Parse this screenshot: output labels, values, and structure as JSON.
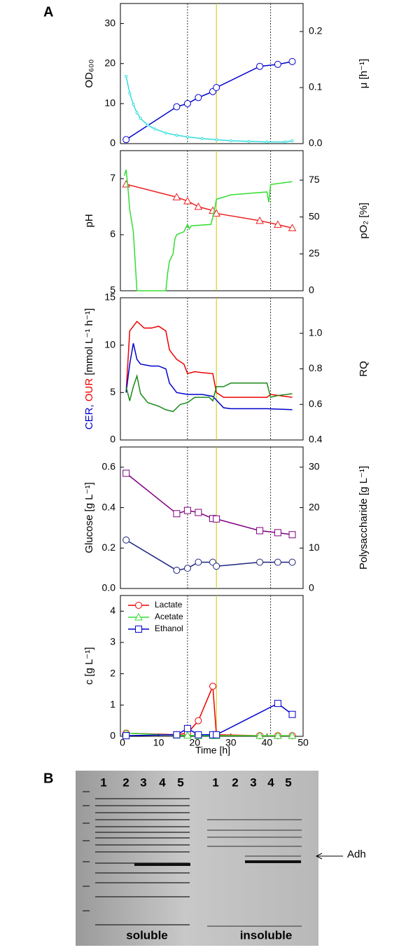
{
  "panel_labels": {
    "a": "A",
    "b": "B"
  },
  "gel": {
    "lanes_soluble": [
      "1",
      "2",
      "3",
      "4",
      "5"
    ],
    "lanes_insoluble": [
      "1",
      "2",
      "3",
      "4",
      "5"
    ],
    "soluble": "soluble",
    "insoluble": "insoluble",
    "arrow_label": "Adh"
  },
  "chart_data": [
    {
      "type": "line",
      "ylabel": [
        {
          "text": "OD₆₀₀",
          "color": "#000000"
        }
      ],
      "y2label": [
        {
          "text": "μ [h⁻¹]",
          "color": "#000000"
        }
      ],
      "xlim": [
        0,
        50
      ],
      "ylim": [
        0,
        35
      ],
      "yticks": [
        0,
        10,
        20,
        30
      ],
      "y2lim": [
        0,
        0.25
      ],
      "y2ticks": [
        {
          "value": 0,
          "label": "0.0"
        },
        0.1,
        0.2
      ],
      "vlines": [
        {
          "x": 18,
          "color": "#333333"
        },
        {
          "x": 26,
          "color": "#c8c800"
        },
        {
          "x": 41,
          "color": "#333333"
        }
      ],
      "series": [
        {
          "color": "#0000cc",
          "marker": "circle",
          "x": [
            1,
            15,
            18,
            21,
            25,
            26,
            38,
            43,
            47
          ],
          "values": [
            1,
            9.2,
            10,
            11.5,
            13,
            14,
            19.3,
            19.8,
            20.5
          ]
        },
        {
          "color": "#33dddd",
          "marker": "dot",
          "axis": "y2",
          "x": [
            1,
            2,
            3,
            4,
            5,
            7,
            9,
            12,
            15,
            18,
            22,
            26,
            30,
            35,
            40,
            45,
            47
          ],
          "values": [
            0.12,
            0.09,
            0.07,
            0.055,
            0.045,
            0.033,
            0.026,
            0.019,
            0.015,
            0.012,
            0.009,
            0.007,
            0.005,
            0.004,
            0.003,
            0.003,
            0.005
          ]
        }
      ]
    },
    {
      "type": "line",
      "ylabel": [
        {
          "text": "pH",
          "color": "#000000"
        }
      ],
      "y2label": [
        {
          "text": "pO₂ [%]",
          "color": "#000000"
        }
      ],
      "xlim": [
        0,
        50
      ],
      "ylim": [
        5,
        7.5
      ],
      "yticks": [
        5,
        6,
        7
      ],
      "y2lim": [
        0,
        95
      ],
      "y2ticks": [
        0,
        25,
        50,
        75
      ],
      "vlines": [
        {
          "x": 18,
          "color": "#333333"
        },
        {
          "x": 26,
          "color": "#c8c800"
        },
        {
          "x": 41,
          "color": "#333333"
        }
      ],
      "series": [
        {
          "color": "#ee2222",
          "marker": "triangle",
          "x": [
            1,
            15,
            18,
            21,
            25,
            26,
            38,
            43,
            47
          ],
          "values": [
            6.9,
            6.67,
            6.6,
            6.5,
            6.43,
            6.38,
            6.25,
            6.18,
            6.12
          ]
        },
        {
          "color": "#33dd33",
          "axis": "y2",
          "x": [
            0.5,
            1,
            1.5,
            2,
            3,
            3.5,
            4,
            12,
            12.5,
            13,
            14,
            14.5,
            15,
            17,
            18,
            18.5,
            19,
            24.5,
            25,
            25.5,
            26,
            30,
            35,
            40,
            40.5,
            41,
            47
          ],
          "values": [
            78,
            82,
            70,
            55,
            40,
            20,
            0,
            0,
            12,
            20,
            25,
            35,
            38,
            40,
            45,
            42,
            44,
            45,
            50,
            55,
            62,
            65,
            66,
            67,
            60,
            72,
            74
          ]
        }
      ]
    },
    {
      "type": "line",
      "ylabel": [
        {
          "text": "CER, ",
          "color": "#0000cc"
        },
        {
          "text": "OUR",
          "color": "#ee0000"
        },
        {
          "text": " [mmol L⁻¹ h⁻¹]",
          "color": "#000000"
        }
      ],
      "y2label": [
        {
          "text": "RQ",
          "color": "#000000"
        }
      ],
      "xlim": [
        0,
        50
      ],
      "ylim": [
        0,
        15
      ],
      "yticks": [
        0,
        5,
        10,
        15
      ],
      "y2lim": [
        0.4,
        1.2
      ],
      "y2ticks": [
        0.4,
        0.6,
        0.8,
        {
          "value": 1,
          "label": "1.0"
        }
      ],
      "vlines": [
        {
          "x": 18,
          "color": "#333333"
        },
        {
          "x": 26,
          "color": "#c8c800"
        },
        {
          "x": 41,
          "color": "#333333"
        }
      ],
      "series": [
        {
          "color": "#ee0000",
          "x": [
            1,
            2,
            3,
            4,
            6,
            8,
            10,
            12,
            13,
            15,
            17,
            18,
            20,
            22,
            25,
            26,
            28,
            30,
            35,
            40,
            41,
            47
          ],
          "values": [
            5,
            11.5,
            12,
            12.5,
            11.8,
            11.8,
            12,
            11.5,
            9.5,
            8.5,
            8,
            7,
            7.2,
            7.1,
            7,
            5,
            4.5,
            4.5,
            4.5,
            4.5,
            4.8,
            4.5
          ]
        },
        {
          "color": "#0000cc",
          "x": [
            1,
            2,
            3,
            4,
            5,
            8,
            10,
            12,
            13,
            15,
            18,
            22,
            25,
            26,
            28,
            30,
            40,
            47
          ],
          "values": [
            5,
            8,
            10.2,
            8.5,
            8,
            7.8,
            7.8,
            7.5,
            6,
            5,
            4.8,
            4.8,
            4.6,
            4.2,
            3.4,
            3.3,
            3.3,
            3.2
          ]
        },
        {
          "color": "#1a8a1a",
          "axis": "y2",
          "x": [
            1,
            2,
            3,
            4,
            5,
            7,
            10,
            12,
            14,
            16,
            18,
            20,
            24,
            25,
            26,
            28,
            30,
            35,
            40,
            41,
            43,
            47
          ],
          "values": [
            0.7,
            0.62,
            0.7,
            0.76,
            0.66,
            0.61,
            0.59,
            0.57,
            0.56,
            0.6,
            0.61,
            0.64,
            0.64,
            0.62,
            0.7,
            0.7,
            0.72,
            0.72,
            0.72,
            0.64,
            0.65,
            0.66
          ]
        }
      ]
    },
    {
      "type": "line",
      "ylabel": [
        {
          "text": "Glucose [g L⁻¹]",
          "color": "#000000"
        }
      ],
      "y2label": [
        {
          "text": "Polysaccharide [g L⁻¹]",
          "color": "#000000"
        }
      ],
      "xlim": [
        0,
        50
      ],
      "ylim": [
        0,
        0.7
      ],
      "yticks": [
        {
          "value": 0,
          "label": "0.0"
        },
        0.2,
        0.4,
        0.6
      ],
      "y2lim": [
        0,
        35
      ],
      "y2ticks": [
        0,
        10,
        20,
        30
      ],
      "vlines": [
        {
          "x": 18,
          "color": "#333333"
        },
        {
          "x": 26,
          "color": "#c8c800"
        },
        {
          "x": 41,
          "color": "#333333"
        }
      ],
      "series": [
        {
          "color": "#1a237e",
          "marker": "circle",
          "x": [
            1,
            15,
            18,
            21,
            25,
            26,
            38,
            43,
            47
          ],
          "values": [
            0.24,
            0.09,
            0.1,
            0.13,
            0.13,
            0.11,
            0.13,
            0.13,
            0.13
          ]
        },
        {
          "color": "#800080",
          "marker": "square",
          "axis": "y2",
          "x": [
            1,
            15,
            18,
            21,
            25,
            26,
            38,
            43,
            47
          ],
          "values": [
            28.5,
            18.5,
            19.3,
            18.8,
            17.3,
            17.2,
            14.3,
            13.8,
            13.3
          ]
        }
      ]
    },
    {
      "type": "line",
      "ylabel": [
        {
          "text": "c [g L⁻¹]",
          "color": "#000000"
        }
      ],
      "xlabel": "Time [h]",
      "xlim": [
        0,
        50
      ],
      "xticks": [
        0,
        10,
        20,
        30,
        40,
        50
      ],
      "ylim": [
        0,
        4.5
      ],
      "yticks": [
        0,
        1,
        2,
        3,
        4
      ],
      "legend": "top-left",
      "vlines": [
        {
          "x": 18,
          "color": "#333333"
        },
        {
          "x": 26,
          "color": "#c8c800"
        },
        {
          "x": 41,
          "color": "#333333"
        }
      ],
      "series": [
        {
          "name": "Lactate",
          "color": "#ee0000",
          "marker": "circle",
          "x": [
            1,
            15,
            18,
            21,
            25,
            26,
            38,
            43,
            47
          ],
          "values": [
            0.1,
            0.05,
            0.1,
            0.5,
            1.6,
            0.05,
            0.02,
            0.02,
            0.02
          ]
        },
        {
          "name": "Acetate",
          "color": "#33dd33",
          "marker": "triangle",
          "x": [
            1,
            15,
            18,
            21,
            25,
            26,
            38,
            43,
            47
          ],
          "values": [
            0.1,
            0.03,
            0.03,
            0.02,
            0.02,
            0.02,
            0.02,
            0.02,
            0.02
          ]
        },
        {
          "name": "Ethanol",
          "color": "#0000cc",
          "marker": "square",
          "x": [
            1,
            15,
            18,
            21,
            25,
            26,
            43,
            47
          ],
          "values": [
            0.02,
            0.05,
            0.25,
            0.05,
            0.05,
            0.05,
            1.05,
            0.7
          ]
        }
      ]
    }
  ]
}
